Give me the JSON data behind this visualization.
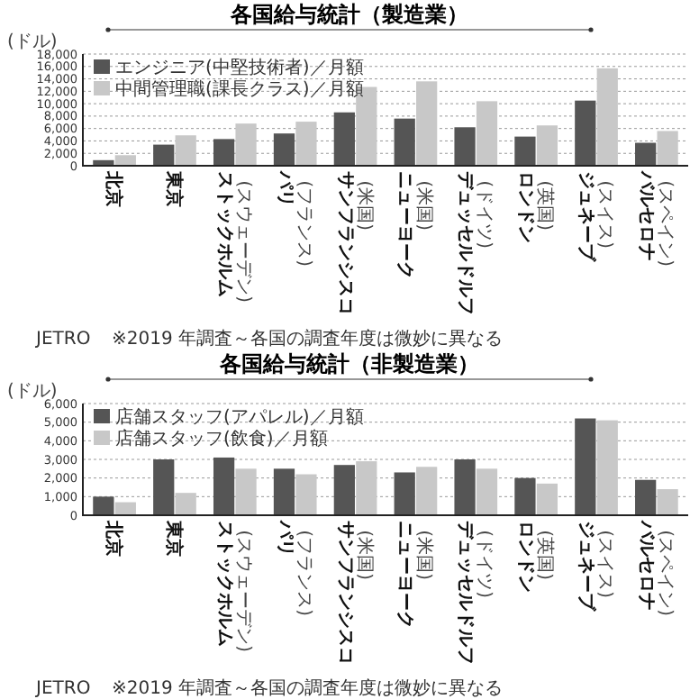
{
  "chart_data": [
    {
      "type": "bar",
      "title": "各国給与統計（製造業）",
      "ylabel": "(ドル)",
      "categories": [
        "北京",
        "東京",
        "ストックホルム (スウェーデン)",
        "パリ (フランス)",
        "サンフランシスコ (米国)",
        "ニューヨーク (米国)",
        "デュッセルドルフ (ドイツ)",
        "ロンドン (英国)",
        "ジュネーブ (スイス)",
        "バルセロナ (スペイン)"
      ],
      "series": [
        {
          "name": "エンジニア(中堅技術者)／月額",
          "color": "#555555",
          "values": [
            900,
            3400,
            4300,
            5200,
            8600,
            7600,
            6200,
            4700,
            10500,
            3700
          ]
        },
        {
          "name": "中間管理職(課長クラス)／月額",
          "color": "#c8c8c8",
          "values": [
            1700,
            4900,
            6800,
            7100,
            12700,
            13600,
            10400,
            6500,
            15700,
            5600
          ]
        }
      ],
      "ylim": [
        0,
        18000
      ],
      "yticks": [
        {
          "value": 0,
          "label": "0"
        },
        {
          "value": 2000,
          "label": "2,000"
        },
        {
          "value": 4000,
          "label": "4,000"
        },
        {
          "value": 6000,
          "label": "6,000"
        },
        {
          "value": 8000,
          "label": "8,000"
        },
        {
          "value": 10000,
          "label": "10,000"
        },
        {
          "value": 12000,
          "label": "12,000"
        },
        {
          "value": 14000,
          "label": "14,000"
        },
        {
          "value": 16000,
          "label": "16,000"
        },
        {
          "value": 18000,
          "label": "18,000"
        }
      ],
      "grid": "y",
      "legend": "top left",
      "annotations": [
        "JETRO",
        "※2019 年調査～各国の調査年度は微妙に異なる"
      ]
    },
    {
      "type": "bar",
      "title": "各国給与統計（非製造業）",
      "ylabel": "(ドル)",
      "categories": [
        "北京",
        "東京",
        "ストックホルム (スウェーデン)",
        "パリ (フランス)",
        "サンフランシスコ (米国)",
        "ニューヨーク (米国)",
        "デュッセルドルフ (ドイツ)",
        "ロンドン (英国)",
        "ジュネーブ (スイス)",
        "バルセロナ (スペイン)"
      ],
      "series": [
        {
          "name": "店舗スタッフ(アパレル)／月額",
          "color": "#555555",
          "values": [
            1000,
            3000,
            3100,
            2500,
            2700,
            2300,
            3000,
            2000,
            5200,
            1900
          ]
        },
        {
          "name": "店舗スタッフ(飲食)／月額",
          "color": "#c8c8c8",
          "values": [
            700,
            1200,
            2500,
            2200,
            2900,
            2600,
            2500,
            1700,
            5100,
            1400
          ]
        }
      ],
      "ylim": [
        0,
        6000
      ],
      "yticks": [
        {
          "value": 0,
          "label": "0"
        },
        {
          "value": 1000,
          "label": "1,000"
        },
        {
          "value": 2000,
          "label": "2,000"
        },
        {
          "value": 3000,
          "label": "3,000"
        },
        {
          "value": 4000,
          "label": "4,000"
        },
        {
          "value": 5000,
          "label": "5,000"
        },
        {
          "value": 6000,
          "label": "6,000"
        }
      ],
      "grid": "y",
      "legend": "top left",
      "annotations": [
        "JETRO",
        "※2019 年調査～各国の調査年度は微妙に異なる"
      ]
    }
  ]
}
